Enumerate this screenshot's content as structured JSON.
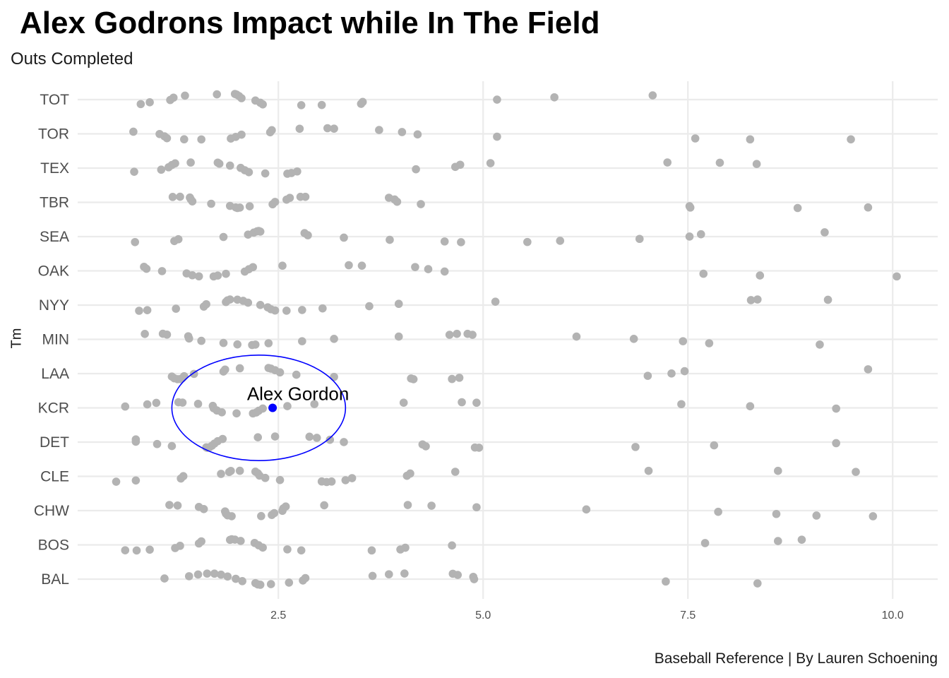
{
  "chart_data": {
    "type": "scatter",
    "title": "Alex Godrons Impact while In The Field",
    "subtitle": "Outs Completed",
    "ylabel": "Tm",
    "xlabel": "",
    "caption": "Baseball Reference | By Lauren Schoening",
    "xlim": [
      0.05,
      10.55
    ],
    "x_ticks": [
      2.5,
      5.0,
      7.5,
      10.0
    ],
    "x_tick_labels": [
      "2.5",
      "5.0",
      "7.5",
      "10.0"
    ],
    "grid": true,
    "point_color": "#b3b3b3",
    "highlight_color": "#0000ff",
    "categories": [
      "BAL",
      "BOS",
      "CHW",
      "CLE",
      "DET",
      "KCR",
      "LAA",
      "MIN",
      "NYY",
      "OAK",
      "SEA",
      "TBR",
      "TEX",
      "TOR",
      "TOT"
    ],
    "points": {
      "TOT": [
        0.82,
        0.93,
        1.18,
        1.22,
        1.36,
        1.75,
        1.97,
        1.99,
        2.02,
        2.05,
        2.22,
        2.28,
        2.31,
        2.78,
        3.03,
        3.51,
        3.53,
        5.17,
        5.87,
        7.07
      ],
      "TOR": [
        0.73,
        1.05,
        1.11,
        1.14,
        1.35,
        1.56,
        1.92,
        1.98,
        2.05,
        2.4,
        2.42,
        2.76,
        3.1,
        3.18,
        3.73,
        4.01,
        4.2,
        5.17,
        7.59,
        8.26,
        9.49
      ],
      "TEX": [
        0.74,
        1.07,
        1.16,
        1.2,
        1.24,
        1.43,
        1.76,
        1.78,
        1.91,
        2.04,
        2.09,
        2.14,
        2.34,
        2.61,
        2.66,
        2.73,
        4.18,
        4.66,
        4.72,
        5.09,
        7.25,
        7.89,
        8.34
      ],
      "TBR": [
        1.21,
        1.3,
        1.42,
        1.43,
        1.45,
        1.68,
        1.91,
        1.98,
        2.0,
        2.03,
        2.15,
        2.43,
        2.46,
        2.6,
        2.64,
        2.77,
        2.83,
        3.85,
        3.92,
        3.95,
        4.24,
        7.52,
        7.53,
        8.84,
        9.7
      ],
      "SEA": [
        0.75,
        1.23,
        1.28,
        1.83,
        2.13,
        2.2,
        2.24,
        2.26,
        2.28,
        2.82,
        2.86,
        3.3,
        3.86,
        4.53,
        4.73,
        5.54,
        5.94,
        6.91,
        7.52,
        7.66,
        9.17
      ],
      "OAK": [
        0.86,
        0.89,
        1.08,
        1.38,
        1.45,
        1.53,
        1.71,
        1.76,
        1.86,
        2.09,
        2.14,
        2.19,
        2.55,
        3.36,
        3.52,
        4.17,
        4.33,
        4.53,
        7.69,
        8.38,
        10.05
      ],
      "NYY": [
        0.8,
        0.9,
        1.25,
        1.59,
        1.62,
        1.86,
        1.88,
        1.91,
        2.0,
        2.07,
        2.13,
        2.28,
        2.37,
        2.41,
        2.46,
        2.6,
        2.79,
        3.04,
        3.61,
        3.97,
        5.15,
        8.27,
        8.35,
        9.21
      ],
      "MIN": [
        0.87,
        1.09,
        1.14,
        1.4,
        1.41,
        1.56,
        1.83,
        2.0,
        2.18,
        2.22,
        2.38,
        2.79,
        3.18,
        3.97,
        4.59,
        4.68,
        4.81,
        4.87,
        6.14,
        6.84,
        7.44,
        7.76,
        9.11
      ],
      "LAA": [
        1.2,
        1.23,
        1.27,
        1.3,
        1.33,
        1.35,
        1.47,
        1.83,
        1.85,
        2.03,
        2.38,
        2.41,
        2.46,
        2.52,
        2.72,
        3.18,
        4.12,
        4.15,
        4.62,
        4.71,
        7.01,
        7.3,
        7.46,
        9.7
      ],
      "KCR": [
        0.63,
        0.9,
        1.01,
        1.28,
        1.33,
        1.52,
        1.7,
        1.71,
        1.75,
        1.81,
        1.99,
        2.19,
        2.23,
        2.26,
        2.31,
        2.61,
        2.94,
        4.03,
        4.74,
        4.92,
        7.42,
        8.26,
        9.31
      ],
      "DET": [
        0.76,
        0.76,
        1.02,
        1.2,
        1.62,
        1.63,
        1.66,
        1.69,
        1.72,
        1.76,
        1.82,
        2.25,
        2.46,
        2.88,
        2.97,
        3.13,
        3.3,
        4.26,
        4.3,
        4.9,
        4.95,
        6.86,
        7.82,
        9.31
      ],
      "CLE": [
        0.52,
        0.76,
        1.31,
        1.34,
        1.8,
        1.9,
        1.92,
        2.03,
        2.22,
        2.25,
        2.27,
        2.34,
        2.52,
        3.03,
        3.09,
        3.15,
        3.32,
        3.4,
        4.07,
        4.11,
        4.66,
        7.02,
        8.6,
        9.55
      ],
      "CHW": [
        1.17,
        1.27,
        1.53,
        1.59,
        1.85,
        1.86,
        1.88,
        1.93,
        2.29,
        2.42,
        2.45,
        2.55,
        2.56,
        2.59,
        3.06,
        4.08,
        4.37,
        4.92,
        6.26,
        7.87,
        8.58,
        9.07,
        9.76
      ],
      "BOS": [
        0.63,
        0.77,
        0.93,
        1.24,
        1.3,
        1.53,
        1.56,
        1.91,
        1.93,
        1.97,
        2.04,
        2.21,
        2.26,
        2.31,
        2.61,
        2.78,
        3.64,
        3.99,
        4.05,
        4.62,
        7.71,
        8.6,
        8.89
      ],
      "BAL": [
        1.11,
        1.41,
        1.52,
        1.63,
        1.72,
        1.8,
        1.88,
        1.98,
        2.06,
        2.22,
        2.25,
        2.28,
        2.41,
        2.63,
        2.8,
        2.83,
        3.65,
        3.85,
        4.04,
        4.63,
        4.69,
        4.88,
        4.89,
        7.23,
        8.35
      ]
    },
    "highlight": {
      "label": "Alex Gordon",
      "team": "KCR",
      "x": 2.43
    },
    "ellipse": {
      "cx": 2.26,
      "cy_team": "KCR",
      "rx": 1.06,
      "ry_rows": 1.54
    }
  }
}
